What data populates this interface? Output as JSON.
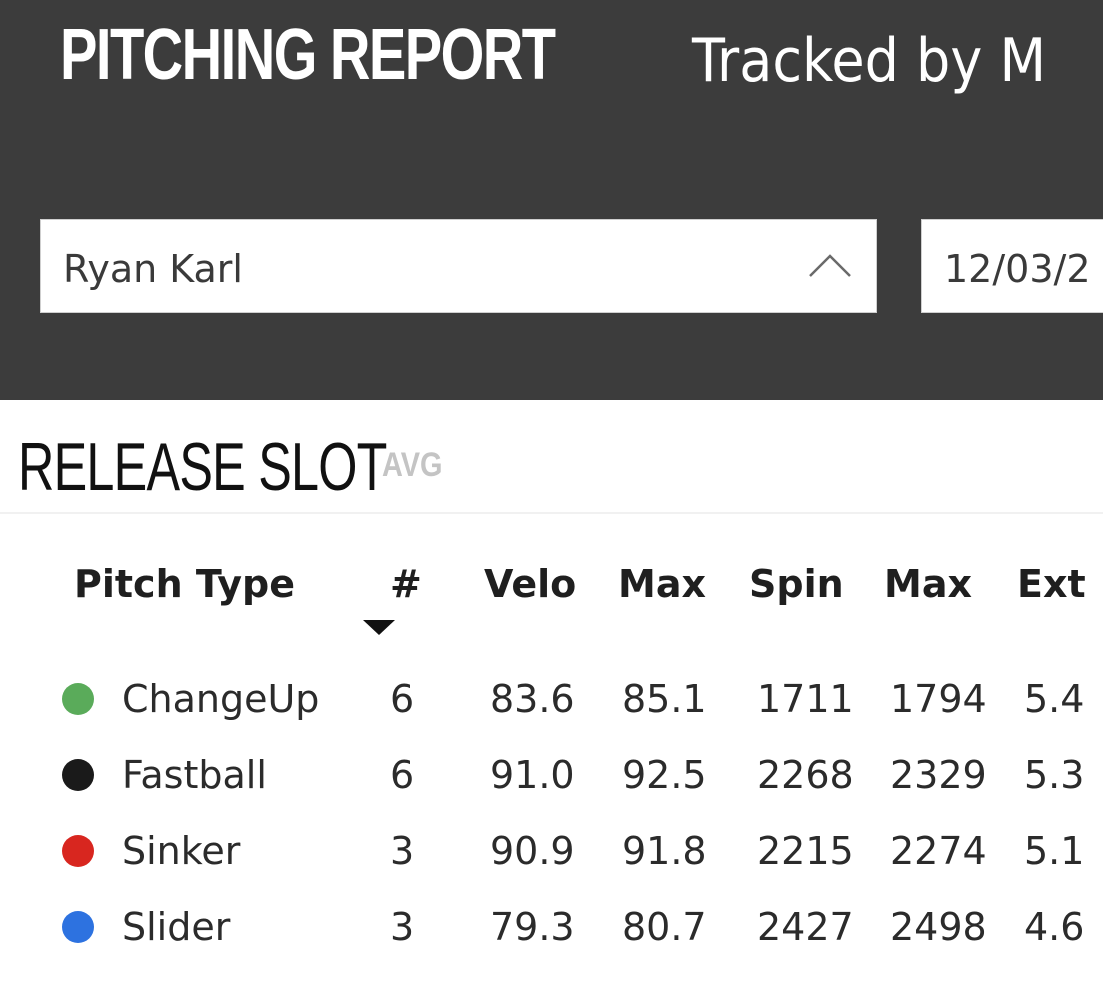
{
  "header": {
    "title": "PITCHING REPORT",
    "subtitle": "Tracked by M"
  },
  "filters": {
    "pitcher": "Ryan Karl",
    "date": "12/03/2"
  },
  "section": {
    "title": "RELEASE SLOT",
    "subtitle": "AVG"
  },
  "table": {
    "columns": [
      "Pitch Type",
      "#",
      "Velo",
      "Max",
      "Spin",
      "Max",
      "Ext"
    ],
    "rows": [
      {
        "color": "#5aab5a",
        "pitch_type": "ChangeUp",
        "count": "6",
        "velo": "83.6",
        "velo_max": "85.1",
        "spin": "1711",
        "spin_max": "1794",
        "ext": "5.4"
      },
      {
        "color": "#1a1a1a",
        "pitch_type": "Fastball",
        "count": "6",
        "velo": "91.0",
        "velo_max": "92.5",
        "spin": "2268",
        "spin_max": "2329",
        "ext": "5.3"
      },
      {
        "color": "#d8261f",
        "pitch_type": "Sinker",
        "count": "3",
        "velo": "90.9",
        "velo_max": "91.8",
        "spin": "2215",
        "spin_max": "2274",
        "ext": "5.1"
      },
      {
        "color": "#2d72e0",
        "pitch_type": "Slider",
        "count": "3",
        "velo": "79.3",
        "velo_max": "80.7",
        "spin": "2427",
        "spin_max": "2498",
        "ext": "4.6"
      }
    ]
  }
}
